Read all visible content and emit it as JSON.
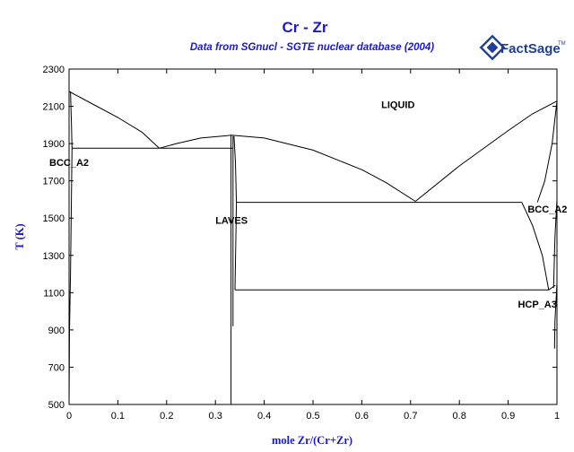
{
  "chart_data": {
    "type": "line",
    "title": "Cr - Zr",
    "subtitle": "Data from SGnucl - SGTE nuclear database (2004)",
    "xlabel": "mole Zr/(Cr+Zr)",
    "ylabel": "T (K)",
    "xlim": [
      0,
      1
    ],
    "ylim": [
      500,
      2300
    ],
    "x_ticks": [
      0,
      0.1,
      0.2,
      0.3,
      0.4,
      0.5,
      0.6,
      0.7,
      0.8,
      0.9,
      1
    ],
    "x_tick_labels": [
      "0",
      "0.1",
      "0.2",
      "0.3",
      "0.4",
      "0.5",
      "0.6",
      "0.7",
      "0.8",
      "0.9",
      "1"
    ],
    "y_ticks": [
      500,
      700,
      900,
      1100,
      1300,
      1500,
      1700,
      1900,
      2100,
      2300
    ],
    "y_tick_labels": [
      "500",
      "700",
      "900",
      "1100",
      "1300",
      "1500",
      "1700",
      "1900",
      "2100",
      "2300"
    ],
    "grid": false,
    "series": [
      {
        "values": [
          [
            0,
            2180
          ],
          [
            0.05,
            2110
          ],
          [
            0.1,
            2040
          ],
          [
            0.15,
            1960
          ],
          [
            0.185,
            1875
          ]
        ]
      },
      {
        "values": [
          [
            0.185,
            1875
          ],
          [
            0.22,
            1900
          ],
          [
            0.27,
            1930
          ],
          [
            0.333,
            1945
          ],
          [
            0.4,
            1930
          ],
          [
            0.5,
            1865
          ],
          [
            0.6,
            1760
          ],
          [
            0.65,
            1690
          ],
          [
            0.71,
            1590
          ]
        ]
      },
      {
        "values": [
          [
            0.71,
            1590
          ],
          [
            0.8,
            1780
          ],
          [
            0.9,
            1970
          ],
          [
            0.95,
            2060
          ],
          [
            1,
            2128
          ]
        ]
      },
      {
        "values": [
          [
            0.003,
            2180
          ],
          [
            0.005,
            2000
          ],
          [
            0.006,
            1875
          ]
        ]
      },
      {
        "values": [
          [
            0.006,
            1875
          ],
          [
            0.003,
            1200
          ],
          [
            0.001,
            900
          ],
          [
            0,
            500
          ]
        ]
      },
      {
        "values": [
          [
            0.006,
            1875
          ],
          [
            0.335,
            1875
          ]
        ]
      },
      {
        "values": [
          [
            0.336,
            1940
          ],
          [
            0.336,
            920
          ]
        ]
      },
      {
        "values": [
          [
            0.332,
            1945
          ],
          [
            0.332,
            500
          ]
        ]
      },
      {
        "values": [
          [
            0.338,
            1940
          ],
          [
            0.341,
            1800
          ],
          [
            0.343,
            1585
          ],
          [
            0.342,
            1400
          ],
          [
            0.34,
            1115
          ]
        ]
      },
      {
        "values": [
          [
            0.343,
            1585
          ],
          [
            0.928,
            1585
          ]
        ]
      },
      {
        "values": [
          [
            0.34,
            1115
          ],
          [
            0.983,
            1115
          ]
        ]
      },
      {
        "values": [
          [
            0.928,
            1585
          ],
          [
            0.95,
            1460
          ],
          [
            0.97,
            1300
          ],
          [
            0.983,
            1115
          ]
        ]
      },
      {
        "values": [
          [
            0.993,
            1125
          ],
          [
            0.996,
            1400
          ],
          [
            1,
            1600
          ]
        ]
      },
      {
        "values": [
          [
            0.983,
            1115
          ],
          [
            0.997,
            1140
          ]
        ]
      },
      {
        "values": [
          [
            1,
            2128
          ],
          [
            0.99,
            1900
          ],
          [
            0.975,
            1700
          ],
          [
            0.96,
            1585
          ]
        ]
      },
      {
        "values": [
          [
            1,
            1150
          ],
          [
            0.998,
            1050
          ],
          [
            0.996,
            950
          ],
          [
            0.995,
            800
          ]
        ]
      }
    ],
    "annotations": [
      {
        "text": "LIQUID",
        "x": 0.64,
        "y": 2090
      },
      {
        "text": "BCC_A2",
        "x": 0.0,
        "y": 1780
      },
      {
        "text": "LAVES",
        "x": 0.3,
        "y": 1470
      },
      {
        "text": "BCC_A2",
        "x": 0.94,
        "y": 1530
      },
      {
        "text": "HCP_A3",
        "x": 0.92,
        "y": 1020
      }
    ]
  },
  "logo": {
    "text": "FactSage",
    "mark": "TM"
  }
}
